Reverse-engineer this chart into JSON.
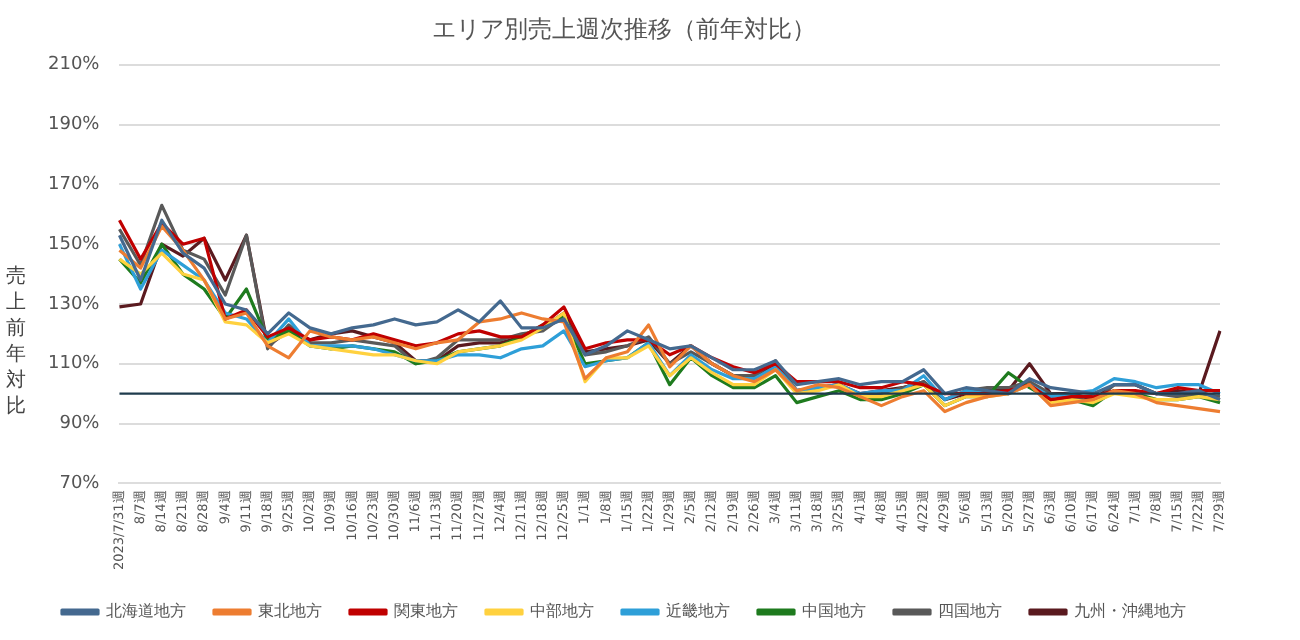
{
  "chart_data": {
    "type": "line",
    "title": "エリア別売上週次推移（前年対比）",
    "ylabel": "売上前年対比",
    "categories": [
      "2023/7/31週",
      "8/7週",
      "8/14週",
      "8/21週",
      "8/28週",
      "9/4週",
      "9/11週",
      "9/18週",
      "9/25週",
      "10/2週",
      "10/9週",
      "10/16週",
      "10/23週",
      "10/30週",
      "11/6週",
      "11/13週",
      "11/20週",
      "11/27週",
      "12/4週",
      "12/11週",
      "12/18週",
      "12/25週",
      "1/1週",
      "1/8週",
      "1/15週",
      "1/22週",
      "1/29週",
      "2/5週",
      "2/12週",
      "2/19週",
      "2/26週",
      "3/4週",
      "3/11週",
      "3/18週",
      "3/25週",
      "4/1週",
      "4/8週",
      "4/15週",
      "4/22週",
      "4/29週",
      "5/6週",
      "5/13週",
      "5/20週",
      "5/27週",
      "6/3週",
      "6/10週",
      "6/17週",
      "6/24週",
      "7/1週",
      "7/8週",
      "7/15週",
      "7/22週",
      "7/29週"
    ],
    "series": [
      {
        "name": "北海道地方",
        "color": "#44698f",
        "values": [
          153,
          138,
          158,
          147,
          142,
          130,
          128,
          120,
          127,
          122,
          120,
          122,
          123,
          125,
          123,
          124,
          128,
          124,
          131,
          122,
          122,
          125,
          113,
          116,
          121,
          118,
          115,
          116,
          112,
          108,
          108,
          111,
          103,
          104,
          105,
          103,
          104,
          104,
          108,
          100,
          102,
          101,
          100,
          105,
          102,
          101,
          100,
          103,
          103,
          100,
          100,
          101,
          98
        ]
      },
      {
        "name": "東北地方",
        "color": "#ed7d31",
        "values": [
          148,
          142,
          156,
          148,
          138,
          125,
          127,
          116,
          112,
          121,
          119,
          118,
          119,
          117,
          115,
          117,
          118,
          124,
          125,
          127,
          125,
          124,
          105,
          112,
          114,
          123,
          109,
          116,
          110,
          106,
          104,
          108,
          101,
          103,
          102,
          99,
          96,
          99,
          101,
          94,
          97,
          99,
          100,
          103,
          96,
          97,
          98,
          101,
          100,
          97,
          96,
          95,
          94
        ]
      },
      {
        "name": "関東地方",
        "color": "#c00000",
        "values": [
          158,
          145,
          157,
          150,
          152,
          125,
          128,
          119,
          122,
          118,
          119,
          118,
          120,
          118,
          116,
          117,
          120,
          121,
          119,
          119,
          123,
          129,
          115,
          117,
          118,
          118,
          113,
          116,
          112,
          109,
          107,
          110,
          104,
          104,
          104,
          102,
          102,
          104,
          103,
          100,
          100,
          100,
          101,
          103,
          98,
          99,
          99,
          101,
          101,
          100,
          102,
          101,
          101
        ]
      },
      {
        "name": "中部地方",
        "color": "#ffd13f",
        "values": [
          145,
          140,
          147,
          140,
          138,
          124,
          123,
          117,
          120,
          116,
          115,
          114,
          113,
          113,
          111,
          110,
          114,
          115,
          116,
          118,
          122,
          127,
          104,
          112,
          112,
          116,
          106,
          112,
          107,
          103,
          103,
          108,
          100,
          101,
          103,
          99,
          99,
          101,
          103,
          96,
          99,
          99,
          100,
          103,
          97,
          98,
          97,
          100,
          99,
          98,
          98,
          99,
          98
        ]
      },
      {
        "name": "近畿地方",
        "color": "#2e9fd8",
        "values": [
          150,
          135,
          148,
          143,
          138,
          127,
          125,
          117,
          125,
          116,
          116,
          116,
          115,
          113,
          111,
          111,
          113,
          113,
          112,
          115,
          116,
          121,
          109,
          111,
          112,
          117,
          106,
          113,
          108,
          105,
          105,
          109,
          101,
          102,
          103,
          100,
          101,
          101,
          106,
          98,
          101,
          100,
          100,
          103,
          99,
          100,
          101,
          105,
          104,
          102,
          103,
          103,
          100
        ]
      },
      {
        "name": "中国地方",
        "color": "#1e7b1e",
        "values": [
          145,
          137,
          150,
          140,
          135,
          125,
          135,
          118,
          121,
          116,
          115,
          116,
          115,
          114,
          110,
          111,
          114,
          115,
          116,
          119,
          123,
          126,
          110,
          111,
          112,
          117,
          103,
          112,
          106,
          102,
          102,
          106,
          97,
          99,
          101,
          98,
          98,
          100,
          103,
          96,
          99,
          99,
          107,
          102,
          98,
          98,
          96,
          101,
          100,
          98,
          98,
          99,
          97
        ]
      },
      {
        "name": "四国地方",
        "color": "#595959",
        "values": [
          155,
          143,
          163,
          148,
          145,
          133,
          153,
          115,
          123,
          117,
          117,
          118,
          117,
          116,
          110,
          112,
          118,
          118,
          118,
          120,
          121,
          126,
          113,
          114,
          116,
          119,
          110,
          114,
          110,
          106,
          106,
          111,
          101,
          102,
          103,
          99,
          100,
          102,
          104,
          98,
          101,
          102,
          102,
          104,
          100,
          99,
          97,
          103,
          103,
          100,
          99,
          100,
          99
        ]
      },
      {
        "name": "九州・沖縄地方",
        "color": "#5a1a1f",
        "values": [
          129,
          130,
          150,
          146,
          152,
          138,
          153,
          116,
          121,
          118,
          120,
          121,
          119,
          117,
          111,
          111,
          116,
          117,
          117,
          119,
          122,
          127,
          114,
          115,
          116,
          118,
          110,
          116,
          110,
          106,
          106,
          110,
          101,
          102,
          103,
          100,
          101,
          102,
          104,
          98,
          100,
          101,
          101,
          110,
          100,
          100,
          98,
          103,
          103,
          100,
          101,
          100,
          121
        ]
      }
    ],
    "ylim": [
      70,
      210
    ],
    "yticks": [
      {
        "value": 70,
        "label": "70%"
      },
      {
        "value": 90,
        "label": "90%"
      },
      {
        "value": 110,
        "label": "110%"
      },
      {
        "value": 130,
        "label": "130%"
      },
      {
        "value": 150,
        "label": "150%"
      },
      {
        "value": 170,
        "label": "170%"
      },
      {
        "value": 190,
        "label": "190%"
      },
      {
        "value": 210,
        "label": "210%"
      }
    ],
    "grid": "y",
    "legend": "bottom",
    "marker": "none",
    "line_style": "solid",
    "ref_lines": [
      {
        "axis": "y",
        "value": 100,
        "color": "#1f3b4d"
      }
    ]
  }
}
